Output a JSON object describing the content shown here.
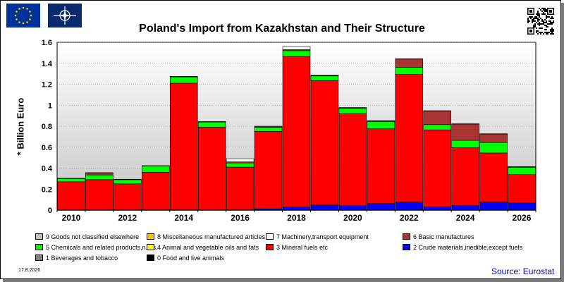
{
  "chart_data": {
    "type": "bar",
    "stacked": true,
    "title": "Poland's Import from Kazakhstan and Their Structure",
    "ylabel": "* Billion Euro",
    "xlabel": "",
    "ylim": [
      0,
      1.6
    ],
    "yticks": [
      "0",
      "0.2",
      "0.4",
      "0.6",
      "0.8",
      "1",
      "1.2",
      "1.4",
      "1.6"
    ],
    "categories": [
      "2010",
      "2011",
      "2012",
      "2013",
      "2014",
      "2015",
      "2016",
      "2017",
      "2018",
      "2019",
      "2020",
      "2021",
      "2022",
      "2023",
      "2024",
      "2025",
      "2026"
    ],
    "xtick_labels": [
      "2010",
      "",
      "2012",
      "",
      "2014",
      "",
      "2016",
      "",
      "2018",
      "",
      "2020",
      "",
      "2022",
      "",
      "2024",
      "",
      "2026"
    ],
    "grid": true,
    "legend_position": "bottom",
    "series": [
      {
        "name": "0 Food and live animals",
        "color": "#000000",
        "values": [
          0,
          0,
          0,
          0,
          0,
          0,
          0,
          0,
          0,
          0,
          0,
          0,
          0,
          0,
          0,
          0,
          0
        ]
      },
      {
        "name": "1 Beverages and tobacco",
        "color": "#808080",
        "values": [
          0,
          0,
          0,
          0,
          0,
          0,
          0,
          0,
          0,
          0,
          0,
          0,
          0,
          0,
          0,
          0,
          0
        ]
      },
      {
        "name": "2 Crude materials,inedible,except fuels",
        "color": "#0000ff",
        "values": [
          0.004,
          0.004,
          0.004,
          0.005,
          0.005,
          0.004,
          0.005,
          0.012,
          0.03,
          0.048,
          0.042,
          0.062,
          0.075,
          0.032,
          0.045,
          0.075,
          0.068
        ]
      },
      {
        "name": "3 Mineral fuels etc",
        "color": "#ff0000",
        "values": [
          0.266,
          0.286,
          0.246,
          0.355,
          1.205,
          0.786,
          0.405,
          0.738,
          1.435,
          1.186,
          0.878,
          0.713,
          1.22,
          0.733,
          0.55,
          0.47,
          0.27
        ]
      },
      {
        "name": "4 Animal and vegetable oils and fats",
        "color": "#ffff00",
        "values": [
          0,
          0,
          0,
          0,
          0,
          0,
          0,
          0,
          0,
          0,
          0,
          0,
          0,
          0,
          0,
          0,
          0
        ]
      },
      {
        "name": "5 Chemicals and related products,n.e.s.",
        "color": "#00ff00",
        "values": [
          0.03,
          0.045,
          0.04,
          0.06,
          0.06,
          0.05,
          0.04,
          0.04,
          0.055,
          0.045,
          0.05,
          0.07,
          0.065,
          0.05,
          0.07,
          0.1,
          0.07
        ]
      },
      {
        "name": "6 Basic manufactures",
        "color": "#aa3333",
        "values": [
          0.002,
          0.02,
          0.002,
          0.002,
          0.003,
          0.002,
          0.01,
          0.005,
          0.01,
          0.005,
          0.005,
          0.005,
          0.08,
          0.13,
          0.155,
          0.08,
          0.005
        ]
      },
      {
        "name": "7 Machinery,transport equipment",
        "color": "#ffffff",
        "values": [
          0.002,
          0.002,
          0.002,
          0.002,
          0.002,
          0.002,
          0.03,
          0.005,
          0.03,
          0.003,
          0.003,
          0.003,
          0.003,
          0.003,
          0.003,
          0.003,
          0.002
        ]
      },
      {
        "name": "8 Miscellaneous manufactured articles",
        "color": "#ffc000",
        "values": [
          0,
          0,
          0,
          0,
          0,
          0,
          0,
          0,
          0,
          0,
          0,
          0,
          0,
          0,
          0,
          0,
          0
        ]
      },
      {
        "name": "9 Goods not classified elsewhere",
        "color": "#c0c0c0",
        "values": [
          0,
          0,
          0,
          0,
          0,
          0,
          0,
          0,
          0,
          0,
          0,
          0,
          0,
          0,
          0,
          0,
          0
        ]
      }
    ],
    "legend": [
      {
        "label": "9 Goods not classified elsewhere",
        "color": "#c0c0c0"
      },
      {
        "label": "8 Miscellaneous manufactured articles",
        "color": "#ffc000"
      },
      {
        "label": "7 Machinery,transport equipment",
        "color": "#ffffff"
      },
      {
        "label": "6 Basic manufactures",
        "color": "#aa3333"
      },
      {
        "label": "5 Chemicals and related products,n.e.s.",
        "color": "#00ff00"
      },
      {
        "label": "4 Animal and vegetable oils and fats",
        "color": "#ffff00"
      },
      {
        "label": "3 Mineral fuels etc",
        "color": "#ff0000"
      },
      {
        "label": "2 Crude materials,inedible,except fuels",
        "color": "#0000ff"
      },
      {
        "label": "1 Beverages and tobacco",
        "color": "#808080"
      },
      {
        "label": "0 Food and live animals",
        "color": "#000000"
      }
    ]
  },
  "footer": {
    "date": "17.8.2026",
    "source": "Source: Eurostat"
  },
  "colors": {
    "eu_flag": "#003399",
    "source_text": "#0000cc"
  },
  "icons": [
    "eu-flag-icon",
    "nato-flag-icon",
    "qr-code-icon"
  ]
}
